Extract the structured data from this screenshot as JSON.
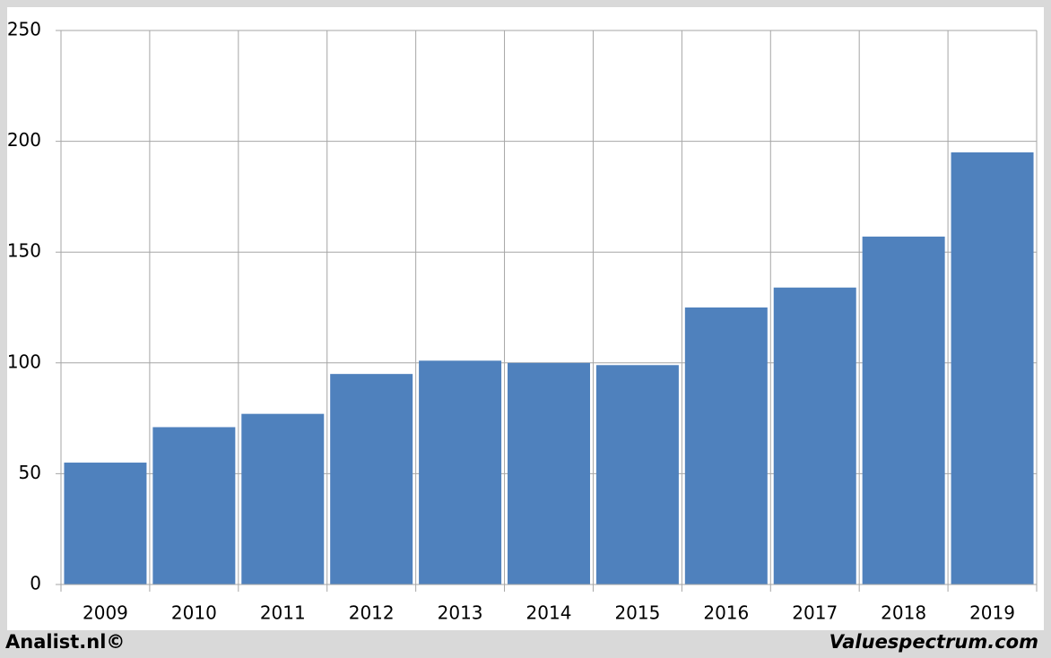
{
  "chart_data": {
    "type": "bar",
    "categories": [
      "2009",
      "2010",
      "2011",
      "2012",
      "2013",
      "2014",
      "2015",
      "2016",
      "2017",
      "2018",
      "2019"
    ],
    "values": [
      55,
      71,
      77,
      95,
      101,
      100,
      99,
      125,
      134,
      157,
      195
    ],
    "color": "#4f81bd",
    "ylim": [
      0,
      250
    ],
    "yticks": [
      0,
      50,
      100,
      150,
      200,
      250
    ],
    "grid": true
  },
  "footer": {
    "left": "Analist.nl©",
    "right": "Valuespectrum.com"
  }
}
